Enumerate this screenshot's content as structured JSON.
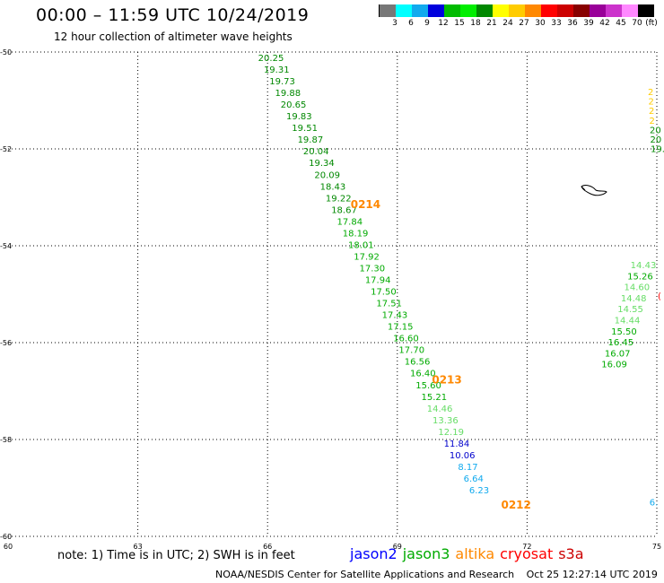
{
  "title": "00:00 – 11:59 UTC 10/24/2019",
  "subtitle": "12 hour collection of altimeter wave heights",
  "legend": {
    "colors": [
      "#777777",
      "#00ffff",
      "#11aaee",
      "#0000dd",
      "#00bb00",
      "#00ee00",
      "#008800",
      "#ffff00",
      "#ffcc00",
      "#ff8800",
      "#ff0000",
      "#cc0000",
      "#880000",
      "#990099",
      "#cc33cc",
      "#ff88ff",
      "#000000"
    ],
    "ticks": [
      "3",
      "6",
      "9",
      "12",
      "15",
      "18",
      "21",
      "24",
      "27",
      "30",
      "33",
      "36",
      "39",
      "42",
      "45",
      "70",
      "(ft)"
    ]
  },
  "map": {
    "lon_ticks": [
      "60",
      "63",
      "66",
      "69",
      "72",
      "75"
    ],
    "lat_ticks": [
      "-50",
      "-52",
      "-54",
      "-56",
      "-58",
      "-60"
    ],
    "pass_labels": [
      {
        "text": "0214",
        "lon": 67.92,
        "lat": -53.22
      },
      {
        "text": "0213",
        "lon": 69.8,
        "lat": -56.84
      },
      {
        "text": "0212",
        "lon": 71.4,
        "lat": -59.43
      }
    ],
    "main_track": [
      {
        "v": "20.25",
        "c": "#008800"
      },
      {
        "v": "19.31",
        "c": "#008800"
      },
      {
        "v": "19.73",
        "c": "#008800"
      },
      {
        "v": "19.88",
        "c": "#008800"
      },
      {
        "v": "20.65",
        "c": "#008800"
      },
      {
        "v": "19.83",
        "c": "#008800"
      },
      {
        "v": "19.51",
        "c": "#008800"
      },
      {
        "v": "19.87",
        "c": "#008800"
      },
      {
        "v": "20.04",
        "c": "#008800"
      },
      {
        "v": "19.34",
        "c": "#008800"
      },
      {
        "v": "20.09",
        "c": "#008800"
      },
      {
        "v": "18.43",
        "c": "#008800"
      },
      {
        "v": "19.22",
        "c": "#008800"
      },
      {
        "v": "18.67",
        "c": "#008800"
      },
      {
        "v": "17.84",
        "c": "#00aa00"
      },
      {
        "v": "18.19",
        "c": "#00aa00"
      },
      {
        "v": "18.01",
        "c": "#00aa00"
      },
      {
        "v": "17.92",
        "c": "#00aa00"
      },
      {
        "v": "17.30",
        "c": "#00aa00"
      },
      {
        "v": "17.94",
        "c": "#00aa00"
      },
      {
        "v": "17.50",
        "c": "#00aa00"
      },
      {
        "v": "17.51",
        "c": "#00aa00"
      },
      {
        "v": "17.43",
        "c": "#00aa00"
      },
      {
        "v": "17.15",
        "c": "#00aa00"
      },
      {
        "v": "16.60",
        "c": "#00aa00"
      },
      {
        "v": "17.70",
        "c": "#00aa00"
      },
      {
        "v": "16.56",
        "c": "#00aa00"
      },
      {
        "v": "16.40",
        "c": "#00aa00"
      },
      {
        "v": "15.60",
        "c": "#00aa00"
      },
      {
        "v": "15.21",
        "c": "#00aa00"
      },
      {
        "v": "14.46",
        "c": "#66dd66"
      },
      {
        "v": "13.36",
        "c": "#66dd66"
      },
      {
        "v": "12.19",
        "c": "#66dd66"
      },
      {
        "v": "11.84",
        "c": "#0000cc"
      },
      {
        "v": "10.06",
        "c": "#0000cc"
      },
      {
        "v": "8.17",
        "c": "#11aaee"
      },
      {
        "v": "6.64",
        "c": "#11aaee"
      },
      {
        "v": "6.23",
        "c": "#11aaee"
      }
    ],
    "east_track_top": [
      {
        "v": "2",
        "c": "#ffcc00"
      },
      {
        "v": "2",
        "c": "#ffcc00"
      },
      {
        "v": "2",
        "c": "#ffcc00"
      },
      {
        "v": "2",
        "c": "#ffcc00"
      },
      {
        "v": "20",
        "c": "#008800"
      },
      {
        "v": "20",
        "c": "#008800"
      },
      {
        "v": "19.",
        "c": "#008800"
      }
    ],
    "east_track_mid": [
      {
        "v": "14.43",
        "c": "#66dd66"
      },
      {
        "v": "15.26",
        "c": "#00aa00"
      },
      {
        "v": "14.60",
        "c": "#66dd66"
      },
      {
        "v": "14.48",
        "c": "#66dd66"
      },
      {
        "v": "14.55",
        "c": "#66dd66"
      },
      {
        "v": "14.44",
        "c": "#66dd66"
      },
      {
        "v": "15.50",
        "c": "#00aa00"
      },
      {
        "v": "16.45",
        "c": "#00aa00"
      },
      {
        "v": "16.07",
        "c": "#00aa00"
      },
      {
        "v": "16.09",
        "c": "#00aa00"
      }
    ],
    "east_edge": [
      {
        "text": "6.",
        "c": "#11aaee",
        "lon": 74.83,
        "lat": -59.36
      },
      {
        "text": "(",
        "c": "#ff0000",
        "lon": 75.02,
        "lat": -55.1
      }
    ],
    "island": "island-outline"
  },
  "note": "note:  1) Time is in UTC;  2) SWH is in feet",
  "satellites": [
    {
      "name": "jason2",
      "color": "#0000ff"
    },
    {
      "name": "jason3",
      "color": "#00aa00"
    },
    {
      "name": "altika",
      "color": "#ff8800"
    },
    {
      "name": "cryosat",
      "color": "#ff0000"
    },
    {
      "name": "s3a",
      "color": "#cc0000"
    }
  ],
  "credit": "NOAA/NESDIS Center for Satellite Applications and Research",
  "timestamp": "Oct 25 12:27:14 UTC 2019"
}
